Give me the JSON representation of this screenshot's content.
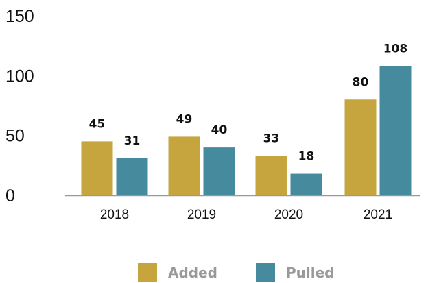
{
  "chart_data": {
    "type": "bar",
    "title": "",
    "xlabel": "",
    "ylabel": "",
    "categories": [
      "2018",
      "2019",
      "2020",
      "2021"
    ],
    "series": [
      {
        "name": "Added",
        "values": [
          45,
          49,
          33,
          80
        ],
        "data_labels": [
          "45",
          "49",
          "33",
          "80"
        ],
        "color": "#C6A53F"
      },
      {
        "name": "Pulled",
        "values": [
          31,
          40,
          18,
          108
        ],
        "data_labels": [
          "31",
          "40",
          "18",
          "108"
        ],
        "color": "#468A9E"
      }
    ],
    "ylim": [
      0,
      150
    ],
    "yticks": [
      0,
      50,
      100,
      150
    ],
    "ytick_labels": [
      "0",
      "50",
      "100",
      "150"
    ],
    "grid": false,
    "legend": "bottom",
    "axis_color": "#999999"
  }
}
